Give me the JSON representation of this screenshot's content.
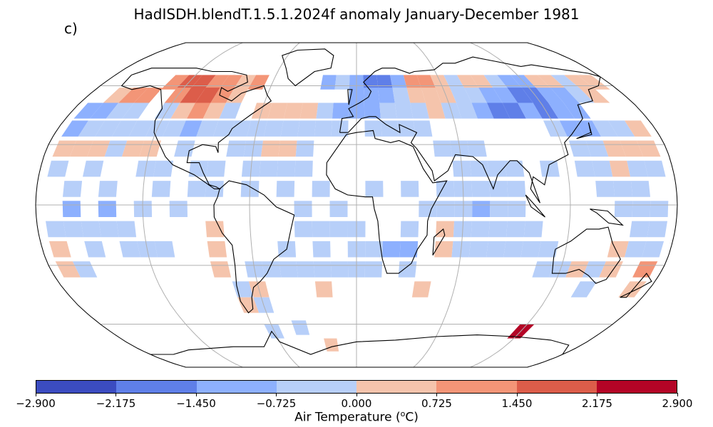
{
  "title": "HadISDH.blendT.1.5.1.2024f anomaly January-December 1981",
  "panel_label": "c)",
  "colorbar": {
    "label_main": "Air Temperature (",
    "label_sup": "o",
    "label_unit": "C)",
    "ticks": [
      "-2.900",
      "-2.175",
      "-1.450",
      "-0.725",
      "0.000",
      "0.725",
      "1.450",
      "2.175",
      "2.900"
    ],
    "tick_values": [
      -2.9,
      -2.175,
      -1.45,
      -0.725,
      0.0,
      0.725,
      1.45,
      2.175,
      2.9
    ],
    "colors": [
      "#3b4cc0",
      "#5f7fe8",
      "#8db0fe",
      "#b7cff9",
      "#f5c4ac",
      "#f39577",
      "#dc5d4a",
      "#b40426"
    ]
  },
  "chart_data": {
    "type": "heatmap",
    "projection": "Robinson",
    "variable": "Air Temperature anomaly",
    "units": "degC",
    "value_range": [
      -2.9,
      2.9
    ],
    "grid_resolution_deg": 5,
    "cells": [
      {
        "lon": -130,
        "lat": 62,
        "class": 5
      },
      {
        "lon": -120,
        "lat": 62,
        "class": 6
      },
      {
        "lon": -110,
        "lat": 62,
        "class": 6
      },
      {
        "lon": -100,
        "lat": 62,
        "class": 5
      },
      {
        "lon": -90,
        "lat": 62,
        "class": 5
      },
      {
        "lon": -80,
        "lat": 62,
        "class": 4
      },
      {
        "lon": -70,
        "lat": 62,
        "class": 5
      },
      {
        "lon": -120,
        "lat": 55,
        "class": 5
      },
      {
        "lon": -110,
        "lat": 55,
        "class": 6
      },
      {
        "lon": -100,
        "lat": 55,
        "class": 6
      },
      {
        "lon": -90,
        "lat": 55,
        "class": 5
      },
      {
        "lon": -80,
        "lat": 55,
        "class": 4
      },
      {
        "lon": -160,
        "lat": 55,
        "class": 4
      },
      {
        "lon": -150,
        "lat": 55,
        "class": 5
      },
      {
        "lon": -140,
        "lat": 55,
        "class": 5
      },
      {
        "lon": -170,
        "lat": 47,
        "class": 2
      },
      {
        "lon": -160,
        "lat": 47,
        "class": 2
      },
      {
        "lon": -150,
        "lat": 47,
        "class": 3
      },
      {
        "lon": -140,
        "lat": 47,
        "class": 3
      },
      {
        "lon": -120,
        "lat": 47,
        "class": 3
      },
      {
        "lon": -110,
        "lat": 47,
        "class": 4
      },
      {
        "lon": -100,
        "lat": 47,
        "class": 5
      },
      {
        "lon": -90,
        "lat": 47,
        "class": 4
      },
      {
        "lon": -80,
        "lat": 47,
        "class": 3
      },
      {
        "lon": -60,
        "lat": 47,
        "class": 4
      },
      {
        "lon": -50,
        "lat": 47,
        "class": 4
      },
      {
        "lon": -40,
        "lat": 47,
        "class": 4
      },
      {
        "lon": -30,
        "lat": 47,
        "class": 4
      },
      {
        "lon": -20,
        "lat": 47,
        "class": 3
      },
      {
        "lon": -10,
        "lat": 47,
        "class": 2
      },
      {
        "lon": -20,
        "lat": 62,
        "class": 2
      },
      {
        "lon": -10,
        "lat": 62,
        "class": 3
      },
      {
        "lon": 0,
        "lat": 62,
        "class": 2
      },
      {
        "lon": 10,
        "lat": 62,
        "class": 1
      },
      {
        "lon": 20,
        "lat": 62,
        "class": 1
      },
      {
        "lon": 30,
        "lat": 62,
        "class": 2
      },
      {
        "lon": 40,
        "lat": 62,
        "class": 5
      },
      {
        "lon": 50,
        "lat": 62,
        "class": 5
      },
      {
        "lon": 60,
        "lat": 62,
        "class": 4
      },
      {
        "lon": 70,
        "lat": 62,
        "class": 3
      },
      {
        "lon": 80,
        "lat": 62,
        "class": 4
      },
      {
        "lon": 90,
        "lat": 62,
        "class": 4
      },
      {
        "lon": 100,
        "lat": 62,
        "class": 3
      },
      {
        "lon": 110,
        "lat": 62,
        "class": 2
      },
      {
        "lon": 120,
        "lat": 62,
        "class": 2
      },
      {
        "lon": 130,
        "lat": 62,
        "class": 4
      },
      {
        "lon": 140,
        "lat": 62,
        "class": 4
      },
      {
        "lon": 150,
        "lat": 62,
        "class": 3
      },
      {
        "lon": 160,
        "lat": 62,
        "class": 4
      },
      {
        "lon": 170,
        "lat": 62,
        "class": 4
      },
      {
        "lon": 0,
        "lat": 55,
        "class": 2
      },
      {
        "lon": 10,
        "lat": 55,
        "class": 2
      },
      {
        "lon": 20,
        "lat": 55,
        "class": 2
      },
      {
        "lon": 30,
        "lat": 55,
        "class": 3
      },
      {
        "lon": 40,
        "lat": 55,
        "class": 4
      },
      {
        "lon": 50,
        "lat": 55,
        "class": 4
      },
      {
        "lon": 60,
        "lat": 55,
        "class": 4
      },
      {
        "lon": 70,
        "lat": 55,
        "class": 3
      },
      {
        "lon": 80,
        "lat": 55,
        "class": 3
      },
      {
        "lon": 90,
        "lat": 55,
        "class": 2
      },
      {
        "lon": 100,
        "lat": 55,
        "class": 2
      },
      {
        "lon": 110,
        "lat": 55,
        "class": 1
      },
      {
        "lon": 120,
        "lat": 55,
        "class": 1
      },
      {
        "lon": 130,
        "lat": 55,
        "class": 2
      },
      {
        "lon": 140,
        "lat": 55,
        "class": 2
      },
      {
        "lon": 150,
        "lat": 55,
        "class": 3
      },
      {
        "lon": 160,
        "lat": 55,
        "class": 4
      },
      {
        "lon": 0,
        "lat": 47,
        "class": 2
      },
      {
        "lon": 10,
        "lat": 47,
        "class": 2
      },
      {
        "lon": 20,
        "lat": 47,
        "class": 3
      },
      {
        "lon": 30,
        "lat": 47,
        "class": 3
      },
      {
        "lon": 40,
        "lat": 47,
        "class": 3
      },
      {
        "lon": 50,
        "lat": 47,
        "class": 4
      },
      {
        "lon": 60,
        "lat": 47,
        "class": 3
      },
      {
        "lon": 70,
        "lat": 47,
        "class": 3
      },
      {
        "lon": 80,
        "lat": 47,
        "class": 2
      },
      {
        "lon": 90,
        "lat": 47,
        "class": 1
      },
      {
        "lon": 100,
        "lat": 47,
        "class": 1
      },
      {
        "lon": 110,
        "lat": 47,
        "class": 2
      },
      {
        "lon": 120,
        "lat": 47,
        "class": 1
      },
      {
        "lon": 130,
        "lat": 47,
        "class": 2
      },
      {
        "lon": 140,
        "lat": 47,
        "class": 2
      },
      {
        "lon": -170,
        "lat": 38,
        "class": 2
      },
      {
        "lon": -160,
        "lat": 38,
        "class": 3
      },
      {
        "lon": -150,
        "lat": 38,
        "class": 3
      },
      {
        "lon": -140,
        "lat": 38,
        "class": 3
      },
      {
        "lon": -130,
        "lat": 38,
        "class": 3
      },
      {
        "lon": -120,
        "lat": 38,
        "class": 3
      },
      {
        "lon": -110,
        "lat": 38,
        "class": 3
      },
      {
        "lon": -100,
        "lat": 38,
        "class": 2
      },
      {
        "lon": -90,
        "lat": 38,
        "class": 3
      },
      {
        "lon": -80,
        "lat": 38,
        "class": 3
      },
      {
        "lon": -70,
        "lat": 38,
        "class": 3
      },
      {
        "lon": -60,
        "lat": 38,
        "class": 3
      },
      {
        "lon": -50,
        "lat": 38,
        "class": 3
      },
      {
        "lon": -40,
        "lat": 38,
        "class": 3
      },
      {
        "lon": -30,
        "lat": 38,
        "class": 3
      },
      {
        "lon": -20,
        "lat": 38,
        "class": 3
      },
      {
        "lon": -10,
        "lat": 38,
        "class": 3
      },
      {
        "lon": 10,
        "lat": 38,
        "class": 3
      },
      {
        "lon": 20,
        "lat": 38,
        "class": 3
      },
      {
        "lon": 30,
        "lat": 38,
        "class": 3
      },
      {
        "lon": 40,
        "lat": 38,
        "class": 3
      },
      {
        "lon": 120,
        "lat": 38,
        "class": 3
      },
      {
        "lon": 130,
        "lat": 38,
        "class": 2
      },
      {
        "lon": 140,
        "lat": 38,
        "class": 2
      },
      {
        "lon": 150,
        "lat": 38,
        "class": 3
      },
      {
        "lon": 160,
        "lat": 38,
        "class": 3
      },
      {
        "lon": 170,
        "lat": 38,
        "class": 4
      },
      {
        "lon": -170,
        "lat": 28,
        "class": 4
      },
      {
        "lon": -160,
        "lat": 28,
        "class": 4
      },
      {
        "lon": -150,
        "lat": 28,
        "class": 4
      },
      {
        "lon": -140,
        "lat": 28,
        "class": 3
      },
      {
        "lon": -130,
        "lat": 28,
        "class": 4
      },
      {
        "lon": -120,
        "lat": 28,
        "class": 4
      },
      {
        "lon": -100,
        "lat": 28,
        "class": 3
      },
      {
        "lon": -70,
        "lat": 28,
        "class": 3
      },
      {
        "lon": -60,
        "lat": 28,
        "class": 3
      },
      {
        "lon": -50,
        "lat": 28,
        "class": 4
      },
      {
        "lon": -40,
        "lat": 28,
        "class": 4
      },
      {
        "lon": -30,
        "lat": 28,
        "class": 3
      },
      {
        "lon": 50,
        "lat": 28,
        "class": 3
      },
      {
        "lon": 60,
        "lat": 28,
        "class": 3
      },
      {
        "lon": 70,
        "lat": 28,
        "class": 3
      },
      {
        "lon": 130,
        "lat": 28,
        "class": 3
      },
      {
        "lon": 140,
        "lat": 28,
        "class": 3
      },
      {
        "lon": 150,
        "lat": 28,
        "class": 4
      },
      {
        "lon": 160,
        "lat": 28,
        "class": 4
      },
      {
        "lon": 170,
        "lat": 28,
        "class": 4
      },
      {
        "lon": -170,
        "lat": 18,
        "class": 3
      },
      {
        "lon": -150,
        "lat": 18,
        "class": 3
      },
      {
        "lon": -120,
        "lat": 18,
        "class": 3
      },
      {
        "lon": -110,
        "lat": 18,
        "class": 3
      },
      {
        "lon": -90,
        "lat": 18,
        "class": 3
      },
      {
        "lon": -80,
        "lat": 18,
        "class": 3
      },
      {
        "lon": -60,
        "lat": 18,
        "class": 3
      },
      {
        "lon": -50,
        "lat": 18,
        "class": 3
      },
      {
        "lon": -40,
        "lat": 18,
        "class": 3
      },
      {
        "lon": -30,
        "lat": 18,
        "class": 3
      },
      {
        "lon": 60,
        "lat": 18,
        "class": 3
      },
      {
        "lon": 70,
        "lat": 18,
        "class": 3
      },
      {
        "lon": 80,
        "lat": 18,
        "class": 3
      },
      {
        "lon": 90,
        "lat": 18,
        "class": 3
      },
      {
        "lon": 110,
        "lat": 18,
        "class": 3
      },
      {
        "lon": 130,
        "lat": 18,
        "class": 3
      },
      {
        "lon": 140,
        "lat": 18,
        "class": 3
      },
      {
        "lon": 150,
        "lat": 18,
        "class": 4
      },
      {
        "lon": 160,
        "lat": 18,
        "class": 3
      },
      {
        "lon": 170,
        "lat": 18,
        "class": 3
      },
      {
        "lon": -160,
        "lat": 8,
        "class": 3
      },
      {
        "lon": -140,
        "lat": 8,
        "class": 3
      },
      {
        "lon": -110,
        "lat": 8,
        "class": 3
      },
      {
        "lon": -90,
        "lat": 8,
        "class": 3
      },
      {
        "lon": -80,
        "lat": 8,
        "class": 3
      },
      {
        "lon": -60,
        "lat": 8,
        "class": 3
      },
      {
        "lon": -40,
        "lat": 8,
        "class": 3
      },
      {
        "lon": -20,
        "lat": 8,
        "class": 3
      },
      {
        "lon": 10,
        "lat": 8,
        "class": 3
      },
      {
        "lon": 30,
        "lat": 8,
        "class": 3
      },
      {
        "lon": 50,
        "lat": 8,
        "class": 3
      },
      {
        "lon": 60,
        "lat": 8,
        "class": 3
      },
      {
        "lon": 70,
        "lat": 8,
        "class": 3
      },
      {
        "lon": 80,
        "lat": 8,
        "class": 3
      },
      {
        "lon": 90,
        "lat": 8,
        "class": 3
      },
      {
        "lon": 140,
        "lat": 8,
        "class": 3
      },
      {
        "lon": 150,
        "lat": 8,
        "class": 3
      },
      {
        "lon": 160,
        "lat": 8,
        "class": 3
      },
      {
        "lon": -160,
        "lat": -2,
        "class": 2
      },
      {
        "lon": -140,
        "lat": -2,
        "class": 2
      },
      {
        "lon": -120,
        "lat": -2,
        "class": 3
      },
      {
        "lon": -100,
        "lat": -2,
        "class": 3
      },
      {
        "lon": -30,
        "lat": -2,
        "class": 3
      },
      {
        "lon": -10,
        "lat": -2,
        "class": 3
      },
      {
        "lon": 40,
        "lat": -2,
        "class": 3
      },
      {
        "lon": 50,
        "lat": -2,
        "class": 3
      },
      {
        "lon": 60,
        "lat": -2,
        "class": 3
      },
      {
        "lon": 70,
        "lat": -2,
        "class": 2
      },
      {
        "lon": 80,
        "lat": -2,
        "class": 3
      },
      {
        "lon": 90,
        "lat": -2,
        "class": 3
      },
      {
        "lon": 150,
        "lat": -2,
        "class": 3
      },
      {
        "lon": 160,
        "lat": -2,
        "class": 3
      },
      {
        "lon": 170,
        "lat": -2,
        "class": 3
      },
      {
        "lon": -170,
        "lat": -12,
        "class": 3
      },
      {
        "lon": -160,
        "lat": -12,
        "class": 3
      },
      {
        "lon": -150,
        "lat": -12,
        "class": 3
      },
      {
        "lon": -140,
        "lat": -12,
        "class": 3
      },
      {
        "lon": -130,
        "lat": -12,
        "class": 3
      },
      {
        "lon": -80,
        "lat": -12,
        "class": 4
      },
      {
        "lon": -30,
        "lat": -12,
        "class": 3
      },
      {
        "lon": -20,
        "lat": -12,
        "class": 3
      },
      {
        "lon": -10,
        "lat": -12,
        "class": 3
      },
      {
        "lon": 0,
        "lat": -12,
        "class": 3
      },
      {
        "lon": 30,
        "lat": -12,
        "class": 3
      },
      {
        "lon": 50,
        "lat": -12,
        "class": 4
      },
      {
        "lon": 60,
        "lat": -12,
        "class": 3
      },
      {
        "lon": 70,
        "lat": -12,
        "class": 3
      },
      {
        "lon": 80,
        "lat": -12,
        "class": 3
      },
      {
        "lon": 90,
        "lat": -12,
        "class": 3
      },
      {
        "lon": 100,
        "lat": -12,
        "class": 3
      },
      {
        "lon": 160,
        "lat": -12,
        "class": 3
      },
      {
        "lon": 170,
        "lat": -12,
        "class": 3
      },
      {
        "lon": -170,
        "lat": -22,
        "class": 4
      },
      {
        "lon": -150,
        "lat": -22,
        "class": 3
      },
      {
        "lon": -130,
        "lat": -22,
        "class": 3
      },
      {
        "lon": -120,
        "lat": -22,
        "class": 3
      },
      {
        "lon": -110,
        "lat": -22,
        "class": 3
      },
      {
        "lon": -80,
        "lat": -22,
        "class": 4
      },
      {
        "lon": -40,
        "lat": -22,
        "class": 3
      },
      {
        "lon": -20,
        "lat": -22,
        "class": 3
      },
      {
        "lon": 0,
        "lat": -22,
        "class": 3
      },
      {
        "lon": 10,
        "lat": -22,
        "class": 3
      },
      {
        "lon": 20,
        "lat": -22,
        "class": 2
      },
      {
        "lon": 30,
        "lat": -22,
        "class": 2
      },
      {
        "lon": 50,
        "lat": -22,
        "class": 4
      },
      {
        "lon": 60,
        "lat": -22,
        "class": 3
      },
      {
        "lon": 70,
        "lat": -22,
        "class": 3
      },
      {
        "lon": 80,
        "lat": -22,
        "class": 3
      },
      {
        "lon": 90,
        "lat": -22,
        "class": 3
      },
      {
        "lon": 100,
        "lat": -22,
        "class": 3
      },
      {
        "lon": 110,
        "lat": -22,
        "class": 3
      },
      {
        "lon": 150,
        "lat": -22,
        "class": 4
      },
      {
        "lon": 160,
        "lat": -22,
        "class": 3
      },
      {
        "lon": 170,
        "lat": -22,
        "class": 3
      },
      {
        "lon": -170,
        "lat": -32,
        "class": 4
      },
      {
        "lon": -160,
        "lat": -32,
        "class": 3
      },
      {
        "lon": -80,
        "lat": -32,
        "class": 4
      },
      {
        "lon": -60,
        "lat": -32,
        "class": 3
      },
      {
        "lon": -50,
        "lat": -32,
        "class": 3
      },
      {
        "lon": -40,
        "lat": -32,
        "class": 3
      },
      {
        "lon": -30,
        "lat": -32,
        "class": 3
      },
      {
        "lon": -20,
        "lat": -32,
        "class": 3
      },
      {
        "lon": -10,
        "lat": -32,
        "class": 3
      },
      {
        "lon": 0,
        "lat": -32,
        "class": 3
      },
      {
        "lon": 10,
        "lat": -32,
        "class": 3
      },
      {
        "lon": 30,
        "lat": -32,
        "class": 3
      },
      {
        "lon": 110,
        "lat": -32,
        "class": 3
      },
      {
        "lon": 120,
        "lat": -32,
        "class": 3
      },
      {
        "lon": 130,
        "lat": -32,
        "class": 4
      },
      {
        "lon": 140,
        "lat": -32,
        "class": 3
      },
      {
        "lon": 150,
        "lat": -32,
        "class": 4
      },
      {
        "lon": 170,
        "lat": -32,
        "class": 5
      },
      {
        "lon": -70,
        "lat": -42,
        "class": 3
      },
      {
        "lon": -60,
        "lat": -42,
        "class": 4
      },
      {
        "lon": -20,
        "lat": -42,
        "class": 4
      },
      {
        "lon": 40,
        "lat": -42,
        "class": 4
      },
      {
        "lon": 140,
        "lat": -42,
        "class": 3
      },
      {
        "lon": 170,
        "lat": -42,
        "class": 4
      },
      {
        "lon": -70,
        "lat": -50,
        "class": 4
      },
      {
        "lon": -60,
        "lat": -50,
        "class": 3
      },
      {
        "lon": -40,
        "lat": -62,
        "class": 3
      },
      {
        "lon": -60,
        "lat": -64,
        "class": 3
      },
      {
        "lon": 120,
        "lat": -64,
        "class": 7
      },
      {
        "lon": -20,
        "lat": -72,
        "class": 4
      }
    ]
  }
}
